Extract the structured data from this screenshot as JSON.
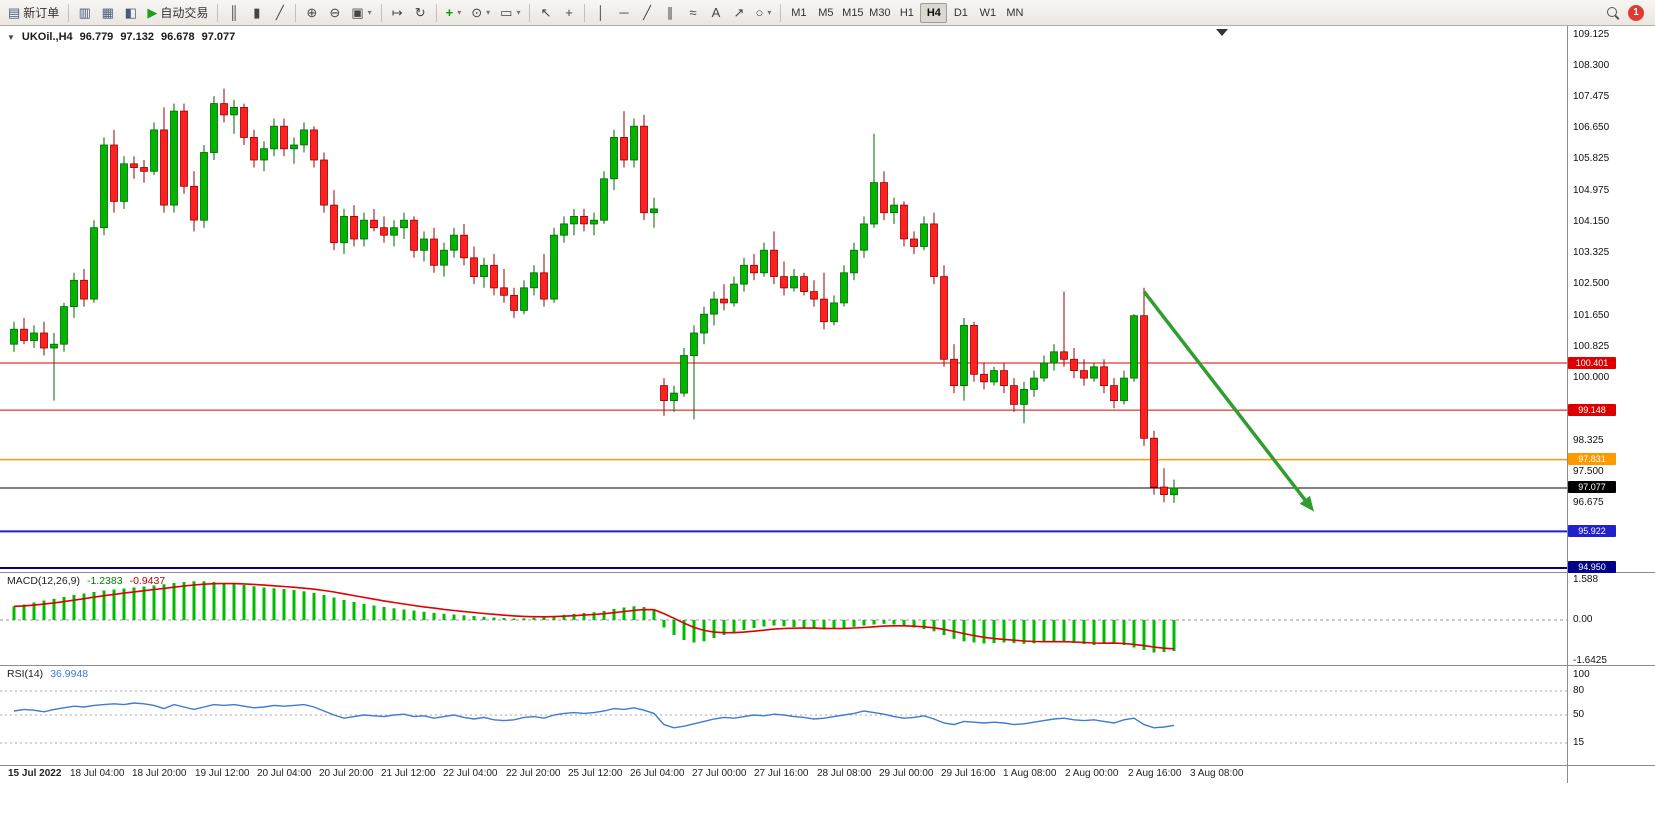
{
  "toolbar": {
    "new_order_label": "新订单",
    "auto_trading_label": "自动交易",
    "timeframes": [
      "M1",
      "M5",
      "M15",
      "M30",
      "H1",
      "H4",
      "D1",
      "W1",
      "MN"
    ],
    "active_timeframe": "H4",
    "notification_count": "1",
    "icons": {
      "new_order": "▤",
      "market_watch": "▥",
      "data_window": "▦",
      "navigator": "◧",
      "auto_trading": "▶",
      "chart_bars": "║",
      "chart_candles": "▮",
      "chart_line": "╱",
      "zoom_in": "⊕",
      "zoom_out": "⊖",
      "tile": "▣",
      "shift": "↦",
      "autoscroll": "↻",
      "indicators": "+",
      "periods": "⊙",
      "templates": "▭",
      "cursor": "↖",
      "crosshair": "+",
      "vline": "│",
      "hline": "─",
      "tline": "╱",
      "channel": "∥",
      "fib": "≈",
      "text": "A",
      "arrows": "↗",
      "shapes": "○",
      "dd": "▾"
    }
  },
  "chart_header": {
    "caret": "▼",
    "symbol": "UKOil.,H4",
    "open": "96.779",
    "high": "97.132",
    "low": "96.678",
    "close": "97.077"
  },
  "indicators": {
    "macd_label": "MACD(12,26,9)",
    "macd_value": "-1.2383",
    "macd_signal": "-0.9437",
    "rsi_label": "RSI(14)",
    "rsi_value": "36.9948"
  },
  "price_axis": {
    "ticks": [
      109.125,
      108.3,
      107.475,
      106.65,
      105.825,
      104.975,
      104.15,
      103.325,
      102.5,
      101.65,
      100.825,
      100.0,
      98.325,
      97.5,
      96.675
    ],
    "macd_ticks": [
      {
        "value": 1.588,
        "label": "1.588"
      },
      {
        "value": 0,
        "label": "0.00"
      },
      {
        "value": -1.6425,
        "label": "-1.6425"
      }
    ],
    "rsi_ticks": [
      {
        "value": 100,
        "label": "100",
        "level": false
      },
      {
        "value": 80,
        "label": "80",
        "level": true
      },
      {
        "value": 50,
        "label": "50",
        "level": true
      },
      {
        "value": 15,
        "label": "15",
        "level": true
      }
    ]
  },
  "hlines": [
    {
      "price": 100.401,
      "label": "100.401",
      "color": "#dd0000",
      "width": 1
    },
    {
      "price": 99.148,
      "label": "99.148",
      "color": "#dd0000",
      "width": 1
    },
    {
      "price": 97.831,
      "label": "97.831",
      "color": "#ff9900",
      "width": 1.5
    },
    {
      "price": 97.077,
      "label": "97.077",
      "color": "#000000",
      "width": 1
    },
    {
      "price": 95.922,
      "label": "95.922",
      "color": "#2222cc",
      "width": 2
    },
    {
      "price": 94.95,
      "label": "94.950",
      "color": "#000088",
      "width": 2
    }
  ],
  "time_axis": [
    "15 Jul 2022",
    "18 Jul 04:00",
    "18 Jul 20:00",
    "19 Jul 12:00",
    "20 Jul 04:00",
    "20 Jul 20:00",
    "21 Jul 12:00",
    "22 Jul 04:00",
    "22 Jul 20:00",
    "25 Jul 12:00",
    "26 Jul 04:00",
    "27 Jul 00:00",
    "27 Jul 16:00",
    "28 Jul 08:00",
    "29 Jul 00:00",
    "29 Jul 16:00",
    "1 Aug 08:00",
    "2 Aug 00:00",
    "2 Aug 16:00",
    "3 Aug 08:00"
  ],
  "colors": {
    "bull": "#00b400",
    "bull_border": "#006600",
    "bear": "#ff2020",
    "bear_border": "#990000",
    "macd_hist": "#00bb00",
    "macd_signal": "#e00000",
    "rsi_line": "#3d7bd4",
    "arrow": "#2f9e2f"
  },
  "chart_data": {
    "type": "candlestick",
    "symbol": "UKOil",
    "timeframe": "H4",
    "price_range": [
      94.95,
      109.125
    ],
    "candles": [
      [
        100.9,
        101.5,
        100.7,
        101.3
      ],
      [
        101.3,
        101.6,
        100.9,
        101.0
      ],
      [
        101.0,
        101.4,
        100.8,
        101.2
      ],
      [
        101.2,
        101.5,
        100.6,
        100.8
      ],
      [
        100.8,
        101.2,
        99.4,
        100.9
      ],
      [
        100.9,
        102.0,
        100.7,
        101.9
      ],
      [
        101.9,
        102.8,
        101.6,
        102.6
      ],
      [
        102.6,
        102.9,
        101.9,
        102.1
      ],
      [
        102.1,
        104.2,
        102.0,
        104.0
      ],
      [
        104.0,
        106.4,
        103.8,
        106.2
      ],
      [
        106.2,
        106.6,
        104.4,
        104.7
      ],
      [
        104.7,
        105.9,
        104.5,
        105.7
      ],
      [
        105.7,
        105.9,
        105.3,
        105.6
      ],
      [
        105.6,
        105.8,
        105.2,
        105.5
      ],
      [
        105.5,
        106.8,
        105.4,
        106.6
      ],
      [
        106.6,
        107.2,
        104.4,
        104.6
      ],
      [
        104.6,
        107.3,
        104.4,
        107.1
      ],
      [
        107.1,
        107.3,
        104.9,
        105.1
      ],
      [
        105.1,
        105.5,
        103.9,
        104.2
      ],
      [
        104.2,
        106.2,
        104.0,
        106.0
      ],
      [
        106.0,
        107.5,
        105.8,
        107.3
      ],
      [
        107.3,
        107.7,
        106.8,
        107.0
      ],
      [
        107.0,
        107.4,
        106.5,
        107.2
      ],
      [
        107.2,
        107.3,
        106.2,
        106.4
      ],
      [
        106.4,
        106.6,
        105.6,
        105.8
      ],
      [
        105.8,
        106.3,
        105.5,
        106.1
      ],
      [
        106.1,
        106.9,
        105.9,
        106.7
      ],
      [
        106.7,
        106.9,
        105.9,
        106.1
      ],
      [
        106.1,
        106.4,
        105.7,
        106.2
      ],
      [
        106.2,
        106.8,
        106.0,
        106.6
      ],
      [
        106.6,
        106.7,
        105.6,
        105.8
      ],
      [
        105.8,
        106.0,
        104.4,
        104.6
      ],
      [
        104.6,
        105.0,
        103.4,
        103.6
      ],
      [
        103.6,
        104.5,
        103.3,
        104.3
      ],
      [
        104.3,
        104.6,
        103.5,
        103.7
      ],
      [
        103.7,
        104.4,
        103.5,
        104.2
      ],
      [
        104.2,
        104.5,
        103.9,
        104.0
      ],
      [
        104.0,
        104.3,
        103.6,
        103.8
      ],
      [
        103.8,
        104.2,
        103.5,
        104.0
      ],
      [
        104.0,
        104.4,
        103.7,
        104.2
      ],
      [
        104.2,
        104.3,
        103.2,
        103.4
      ],
      [
        103.4,
        103.9,
        103.1,
        103.7
      ],
      [
        103.7,
        104.0,
        102.8,
        103.0
      ],
      [
        103.0,
        103.6,
        102.7,
        103.4
      ],
      [
        103.4,
        104.0,
        103.2,
        103.8
      ],
      [
        103.8,
        104.1,
        103.0,
        103.2
      ],
      [
        103.2,
        103.5,
        102.5,
        102.7
      ],
      [
        102.7,
        103.2,
        102.4,
        103.0
      ],
      [
        103.0,
        103.3,
        102.2,
        102.4
      ],
      [
        102.4,
        102.9,
        102.0,
        102.2
      ],
      [
        102.2,
        102.4,
        101.6,
        101.8
      ],
      [
        101.8,
        102.6,
        101.7,
        102.4
      ],
      [
        102.4,
        103.0,
        102.2,
        102.8
      ],
      [
        102.8,
        103.3,
        101.9,
        102.1
      ],
      [
        102.1,
        104.0,
        102.0,
        103.8
      ],
      [
        103.8,
        104.3,
        103.6,
        104.1
      ],
      [
        104.1,
        104.5,
        103.8,
        104.3
      ],
      [
        104.3,
        104.5,
        103.9,
        104.1
      ],
      [
        104.1,
        104.4,
        103.8,
        104.2
      ],
      [
        104.2,
        105.5,
        104.1,
        105.3
      ],
      [
        105.3,
        106.6,
        105.0,
        106.4
      ],
      [
        106.4,
        107.1,
        105.6,
        105.8
      ],
      [
        105.8,
        106.9,
        105.6,
        106.7
      ],
      [
        106.7,
        107.0,
        104.2,
        104.4
      ],
      [
        104.4,
        104.8,
        104.0,
        104.5
      ],
      [
        99.8,
        100.0,
        99.0,
        99.4
      ],
      [
        99.4,
        99.8,
        99.1,
        99.6
      ],
      [
        99.6,
        100.8,
        99.5,
        100.6
      ],
      [
        100.6,
        101.4,
        98.9,
        101.2
      ],
      [
        101.2,
        101.9,
        100.9,
        101.7
      ],
      [
        101.7,
        102.3,
        101.4,
        102.1
      ],
      [
        102.1,
        102.5,
        101.8,
        102.0
      ],
      [
        102.0,
        102.7,
        101.9,
        102.5
      ],
      [
        102.5,
        103.2,
        102.3,
        103.0
      ],
      [
        103.0,
        103.3,
        102.6,
        102.8
      ],
      [
        102.8,
        103.6,
        102.7,
        103.4
      ],
      [
        103.4,
        103.9,
        102.5,
        102.7
      ],
      [
        102.7,
        103.1,
        102.2,
        102.4
      ],
      [
        102.4,
        102.9,
        102.3,
        102.7
      ],
      [
        102.7,
        102.8,
        102.2,
        102.3
      ],
      [
        102.3,
        102.6,
        101.9,
        102.1
      ],
      [
        102.1,
        102.8,
        101.3,
        101.5
      ],
      [
        101.5,
        102.2,
        101.4,
        102.0
      ],
      [
        102.0,
        103.0,
        101.9,
        102.8
      ],
      [
        102.8,
        103.6,
        102.6,
        103.4
      ],
      [
        103.4,
        104.3,
        103.2,
        104.1
      ],
      [
        104.1,
        106.5,
        104.0,
        105.2
      ],
      [
        105.2,
        105.5,
        104.2,
        104.4
      ],
      [
        104.4,
        104.8,
        104.1,
        104.6
      ],
      [
        104.6,
        104.7,
        103.5,
        103.7
      ],
      [
        103.7,
        103.9,
        103.3,
        103.5
      ],
      [
        103.5,
        104.3,
        103.4,
        104.1
      ],
      [
        104.1,
        104.4,
        102.5,
        102.7
      ],
      [
        102.7,
        103.0,
        100.3,
        100.5
      ],
      [
        100.5,
        100.9,
        99.6,
        99.8
      ],
      [
        99.8,
        101.6,
        99.4,
        101.4
      ],
      [
        101.4,
        101.5,
        99.9,
        100.1
      ],
      [
        100.1,
        100.4,
        99.7,
        99.9
      ],
      [
        99.9,
        100.3,
        99.8,
        100.2
      ],
      [
        100.2,
        100.4,
        99.6,
        99.8
      ],
      [
        99.8,
        100.0,
        99.1,
        99.3
      ],
      [
        99.3,
        99.9,
        98.8,
        99.7
      ],
      [
        99.7,
        100.2,
        99.5,
        100.0
      ],
      [
        100.0,
        100.6,
        99.9,
        100.4
      ],
      [
        100.4,
        100.9,
        100.2,
        100.7
      ],
      [
        100.7,
        102.3,
        100.3,
        100.5
      ],
      [
        100.5,
        100.8,
        100.0,
        100.2
      ],
      [
        100.2,
        100.5,
        99.8,
        100.0
      ],
      [
        100.0,
        100.4,
        99.9,
        100.3
      ],
      [
        100.3,
        100.5,
        99.6,
        99.8
      ],
      [
        99.8,
        100.0,
        99.2,
        99.4
      ],
      [
        99.4,
        100.2,
        99.3,
        100.0
      ],
      [
        100.0,
        101.7,
        99.9,
        101.66
      ],
      [
        101.66,
        102.4,
        98.2,
        98.4
      ],
      [
        98.4,
        98.6,
        96.9,
        97.1
      ],
      [
        97.1,
        97.6,
        96.7,
        96.9
      ],
      [
        96.9,
        97.3,
        96.68,
        97.077
      ]
    ],
    "macd_histogram": [
      0.55,
      0.62,
      0.7,
      0.78,
      0.85,
      0.92,
      1.0,
      1.06,
      1.12,
      1.18,
      1.22,
      1.26,
      1.3,
      1.34,
      1.38,
      1.43,
      1.48,
      1.52,
      1.55,
      1.55,
      1.52,
      1.48,
      1.44,
      1.4,
      1.35,
      1.3,
      1.27,
      1.24,
      1.2,
      1.15,
      1.08,
      1.0,
      0.9,
      0.8,
      0.72,
      0.65,
      0.58,
      0.52,
      0.47,
      0.42,
      0.38,
      0.33,
      0.29,
      0.25,
      0.22,
      0.19,
      0.16,
      0.13,
      0.1,
      0.08,
      0.06,
      0.07,
      0.09,
      0.12,
      0.16,
      0.21,
      0.25,
      0.28,
      0.31,
      0.36,
      0.44,
      0.5,
      0.55,
      0.52,
      0.4,
      -0.3,
      -0.6,
      -0.8,
      -0.9,
      -0.85,
      -0.72,
      -0.6,
      -0.5,
      -0.4,
      -0.32,
      -0.26,
      -0.22,
      -0.25,
      -0.28,
      -0.3,
      -0.33,
      -0.38,
      -0.36,
      -0.32,
      -0.27,
      -0.22,
      -0.18,
      -0.15,
      -0.18,
      -0.24,
      -0.3,
      -0.36,
      -0.45,
      -0.6,
      -0.75,
      -0.85,
      -0.9,
      -0.94,
      -0.92,
      -0.9,
      -0.92,
      -0.95,
      -0.93,
      -0.9,
      -0.86,
      -0.88,
      -0.92,
      -0.96,
      -1.0,
      -0.96,
      -0.9,
      -1.0,
      -1.1,
      -1.2,
      -1.3,
      -1.28,
      -1.2383
    ],
    "rsi": [
      55,
      57,
      56,
      54,
      57,
      59,
      61,
      60,
      62,
      63,
      64,
      63,
      65,
      64,
      62,
      58,
      63,
      60,
      57,
      60,
      63,
      62,
      63,
      61,
      59,
      60,
      62,
      61,
      62,
      63,
      60,
      55,
      50,
      46,
      48,
      50,
      49,
      48,
      50,
      51,
      48,
      49,
      46,
      48,
      50,
      47,
      45,
      47,
      44,
      43,
      44,
      47,
      48,
      46,
      50,
      52,
      53,
      52,
      53,
      55,
      58,
      57,
      59,
      56,
      52,
      38,
      34,
      36,
      39,
      42,
      45,
      47,
      46,
      48,
      50,
      49,
      51,
      50,
      48,
      47,
      45,
      46,
      48,
      50,
      52,
      55,
      53,
      51,
      48,
      46,
      47,
      49,
      45,
      40,
      38,
      42,
      41,
      40,
      41,
      40,
      38,
      39,
      41,
      43,
      45,
      46,
      44,
      43,
      44,
      42,
      40,
      44,
      46,
      38,
      34,
      35,
      36.99
    ],
    "arrow_annotation": {
      "from_bar": 113,
      "from_price": 102.3,
      "to_bar": 130,
      "to_price": 96.45
    }
  }
}
